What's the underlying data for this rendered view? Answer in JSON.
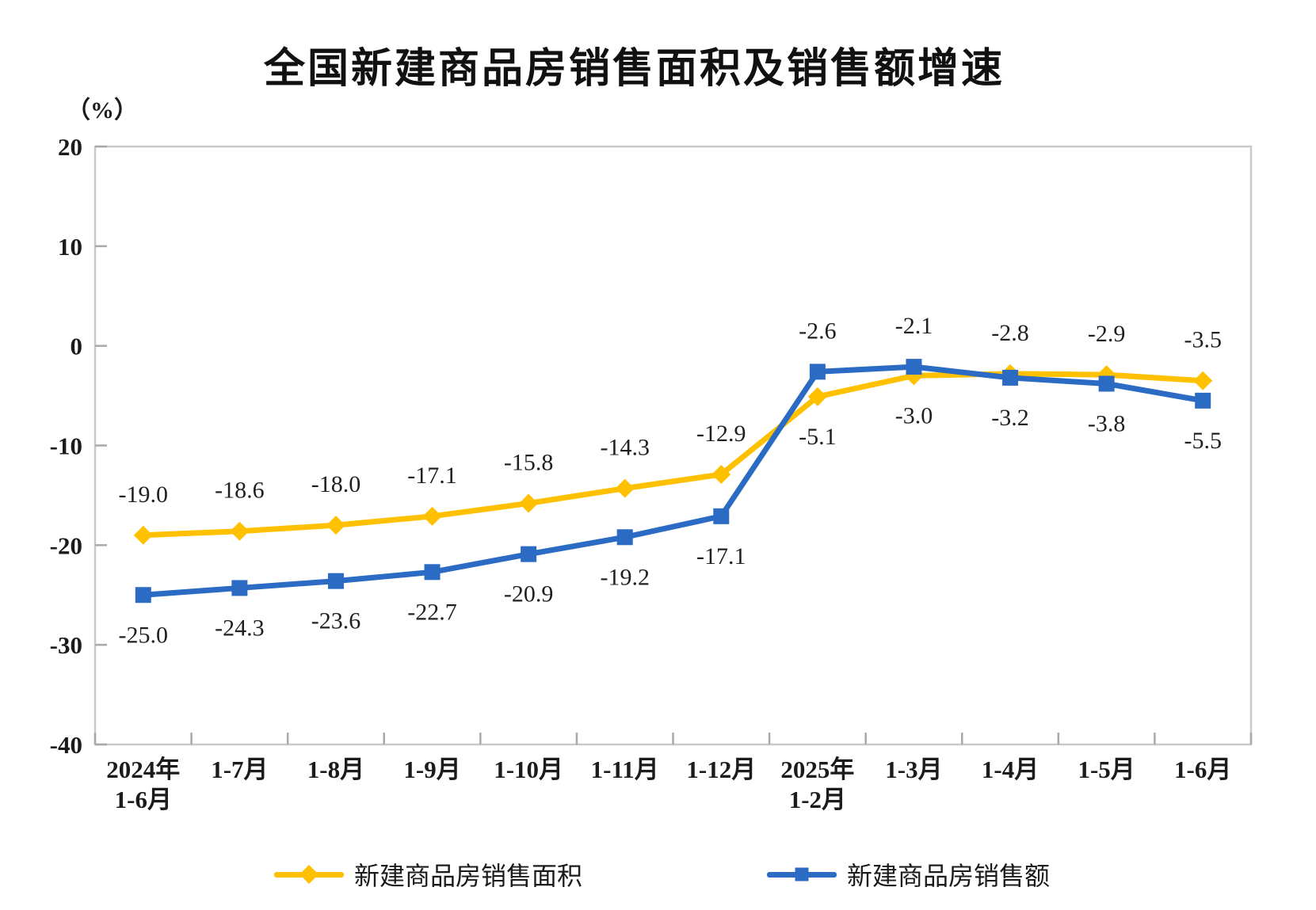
{
  "page": {
    "background": "#ffffff"
  },
  "chart_data": {
    "type": "line",
    "title": "全国新建商品房销售面积及销售额增速",
    "unit_label": "（%）",
    "xlabel": "",
    "ylabel": "（%）",
    "ylim": [
      -40,
      20
    ],
    "yticks": [
      20,
      10,
      0,
      -10,
      -20,
      -30,
      -40
    ],
    "grid": false,
    "legend_position": "bottom",
    "categories": [
      [
        "2024年",
        "1-6月"
      ],
      [
        "1-7月"
      ],
      [
        "1-8月"
      ],
      [
        "1-9月"
      ],
      [
        "1-10月"
      ],
      [
        "1-11月"
      ],
      [
        "1-12月"
      ],
      [
        "2025年",
        "1-2月"
      ],
      [
        "1-3月"
      ],
      [
        "1-4月"
      ],
      [
        "1-5月"
      ],
      [
        "1-6月"
      ]
    ],
    "series": [
      {
        "name": "新建商品房销售面积",
        "color": "#FFC000",
        "marker": "diamond",
        "values": [
          -19.0,
          -18.6,
          -18.0,
          -17.1,
          -15.8,
          -14.3,
          -12.9,
          -5.1,
          -3.0,
          -2.8,
          -2.9,
          -3.5
        ],
        "label_side": [
          "above",
          "above",
          "above",
          "above",
          "above",
          "above",
          "above",
          "below",
          "below",
          "above",
          "above",
          "above"
        ]
      },
      {
        "name": "新建商品房销售额",
        "color": "#2B6BC4",
        "marker": "square",
        "values": [
          -25.0,
          -24.3,
          -23.6,
          -22.7,
          -20.9,
          -19.2,
          -17.1,
          -2.6,
          -2.1,
          -3.2,
          -3.8,
          -5.5
        ],
        "label_side": [
          "below",
          "below",
          "below",
          "below",
          "below",
          "below",
          "below",
          "above",
          "above",
          "below",
          "below",
          "below"
        ]
      }
    ],
    "axis_colors": {
      "border": "#c9c9c9",
      "tick": "#a9a9a9",
      "text": "#1b1b1b"
    }
  }
}
